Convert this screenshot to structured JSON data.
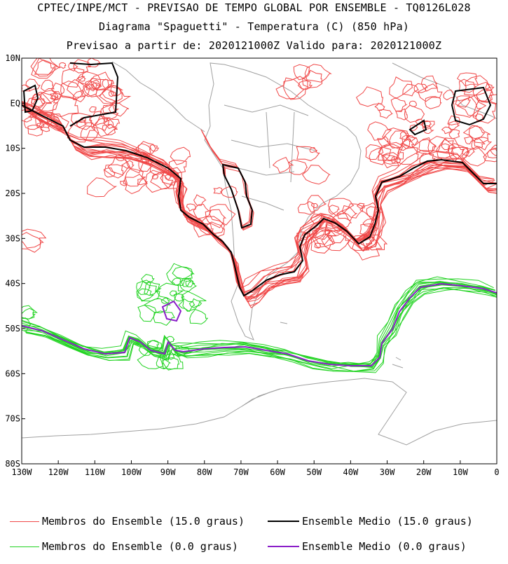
{
  "titles": {
    "line1": "CPTEC/INPE/MCT - PREVISAO DE TEMPO GLOBAL POR ENSEMBLE - TQ0126L028",
    "line2": "Diagrama \"Spaguetti\" - Temperatura (C) (850 hPa)",
    "line3": "Previsao a partir de: 2020121000Z  Valido para: 2020121000Z"
  },
  "map": {
    "lon_range": [
      -130,
      0
    ],
    "lat_range": [
      -80,
      10
    ],
    "lat_labels": [
      "10N",
      "EQ",
      "10S",
      "20S",
      "30S",
      "40S",
      "50S",
      "60S",
      "70S",
      "80S"
    ],
    "lon_labels": [
      "130W",
      "120W",
      "110W",
      "100W",
      "90W",
      "80W",
      "70W",
      "60W",
      "50W",
      "40W",
      "30W",
      "20W",
      "10W",
      "0"
    ],
    "colors": {
      "coast": "#a0a0a0",
      "member_15": "#f04848",
      "mean_15": "#000000",
      "member_0": "#22d322",
      "mean_0": "#8a1ec8"
    }
  },
  "legend": {
    "members_15": "Membros do Ensemble (15.0 graus)",
    "mean_15": "Ensemble Medio (15.0 graus)",
    "members_0": "Membros do Ensemble (0.0 graus)",
    "mean_0": "Ensemble Medio (0.0 graus)"
  }
}
